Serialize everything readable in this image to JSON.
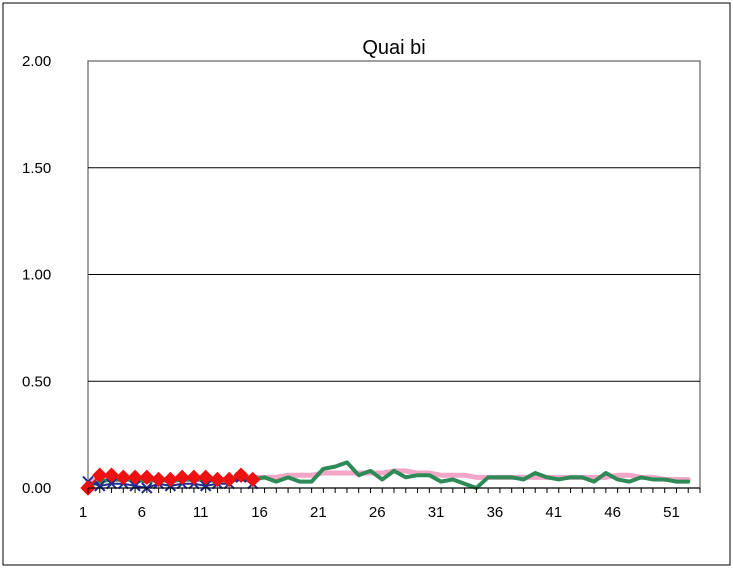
{
  "chart_data": {
    "type": "line",
    "title": "Quai bi",
    "xlabel": "",
    "ylabel": "",
    "xlim": [
      1,
      52
    ],
    "ylim": [
      0,
      2.0
    ],
    "y_ticks": [
      "0.00",
      "0.50",
      "1.00",
      "1.50",
      "2.00"
    ],
    "x_ticks": [
      "1",
      "6",
      "11",
      "16",
      "21",
      "26",
      "31",
      "36",
      "41",
      "46",
      "51"
    ],
    "grid": "horizontal",
    "legend": "none",
    "series": [
      {
        "color": "#f4a6c8",
        "marker": "none",
        "x": [
          1,
          2,
          3,
          4,
          5,
          6,
          7,
          8,
          9,
          10,
          11,
          12,
          13,
          14,
          15,
          16,
          17,
          18,
          19,
          20,
          21,
          22,
          23,
          24,
          25,
          26,
          27,
          28,
          29,
          30,
          31,
          32,
          33,
          34,
          35,
          36,
          37,
          38,
          39,
          40,
          41,
          42,
          43,
          44,
          45,
          46,
          47,
          48,
          49,
          50,
          51,
          52
        ],
        "values": [
          0.03,
          0.04,
          0.04,
          0.04,
          0.04,
          0.04,
          0.04,
          0.04,
          0.04,
          0.04,
          0.04,
          0.04,
          0.04,
          0.05,
          0.05,
          0.05,
          0.05,
          0.06,
          0.06,
          0.06,
          0.07,
          0.07,
          0.07,
          0.07,
          0.07,
          0.07,
          0.08,
          0.08,
          0.07,
          0.07,
          0.06,
          0.06,
          0.06,
          0.05,
          0.05,
          0.05,
          0.05,
          0.05,
          0.05,
          0.05,
          0.05,
          0.05,
          0.05,
          0.05,
          0.05,
          0.06,
          0.06,
          0.05,
          0.05,
          0.04,
          0.04,
          0.04
        ]
      },
      {
        "color": "#2e8b57",
        "marker": "none",
        "x": [
          1,
          2,
          3,
          4,
          5,
          6,
          7,
          8,
          9,
          10,
          11,
          12,
          13,
          14,
          15,
          16,
          17,
          18,
          19,
          20,
          21,
          22,
          23,
          24,
          25,
          26,
          27,
          28,
          29,
          30,
          31,
          32,
          33,
          34,
          35,
          36,
          37,
          38,
          39,
          40,
          41,
          42,
          43,
          44,
          45,
          46,
          47,
          48,
          49,
          50,
          51,
          52
        ],
        "values": [
          0.01,
          0.03,
          0.04,
          0.04,
          0.04,
          0.03,
          0.04,
          0.03,
          0.04,
          0.04,
          0.04,
          0.03,
          0.04,
          0.04,
          0.04,
          0.05,
          0.03,
          0.05,
          0.03,
          0.03,
          0.09,
          0.1,
          0.12,
          0.06,
          0.08,
          0.04,
          0.08,
          0.05,
          0.06,
          0.06,
          0.03,
          0.04,
          0.02,
          0.0,
          0.05,
          0.05,
          0.05,
          0.04,
          0.07,
          0.05,
          0.04,
          0.05,
          0.05,
          0.03,
          0.07,
          0.04,
          0.03,
          0.05,
          0.04,
          0.04,
          0.03,
          0.03
        ]
      },
      {
        "color": "#1f2d8c",
        "marker": "x",
        "x": [
          1,
          2,
          3,
          4,
          5,
          6,
          7,
          8,
          9,
          10,
          11,
          12,
          13,
          14,
          15
        ],
        "values": [
          0.03,
          0.01,
          0.02,
          0.02,
          0.01,
          0.0,
          0.02,
          0.01,
          0.02,
          0.02,
          0.01,
          0.02,
          0.02,
          0.05,
          0.02
        ]
      },
      {
        "color": "#ee1111",
        "marker": "diamond",
        "x": [
          1,
          2,
          3,
          4,
          5,
          6,
          7,
          8,
          9,
          10,
          11,
          12,
          13,
          14,
          15
        ],
        "values": [
          0.0,
          0.06,
          0.06,
          0.05,
          0.05,
          0.05,
          0.04,
          0.04,
          0.05,
          0.05,
          0.05,
          0.04,
          0.04,
          0.06,
          0.04
        ]
      }
    ]
  }
}
